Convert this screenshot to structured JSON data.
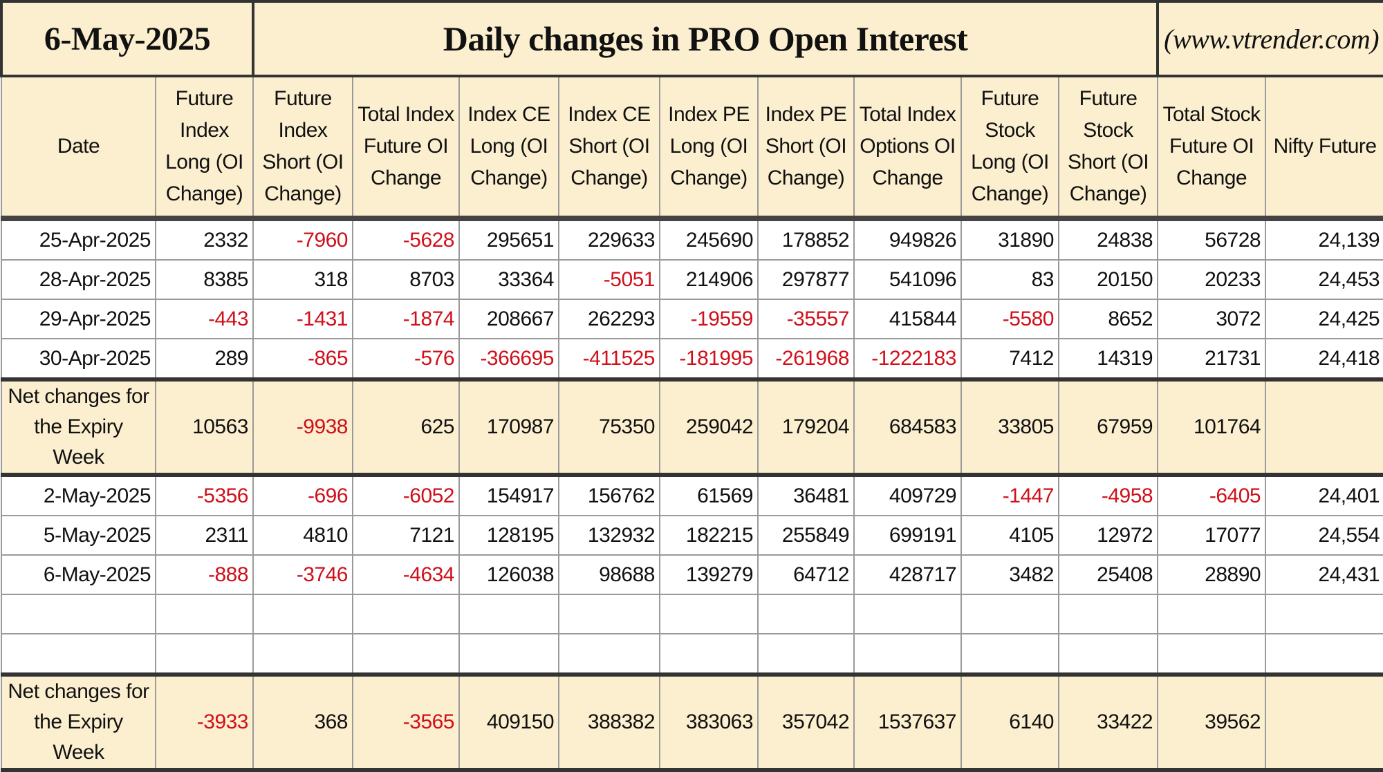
{
  "header": {
    "date": "6-May-2025",
    "title": "Daily changes in PRO Open Interest",
    "website": "(www.vtrender.com)"
  },
  "table": {
    "columns": [
      "Date",
      "Future Index Long (OI Change)",
      "Future Index Short (OI Change)",
      "Total Index Future OI Change",
      "Index CE Long (OI Change)",
      "Index CE Short (OI Change)",
      "Index PE Long (OI Change)",
      "Index PE Short (OI Change)",
      "Total Index Options OI Change",
      "Future Stock Long (OI Change)",
      "Future Stock Short (OI Change)",
      "Total Stock Future OI Change",
      "Nifty Future"
    ],
    "sections": [
      {
        "rows": [
          [
            "25-Apr-2025",
            "2332",
            "-7960",
            "-5628",
            "295651",
            "229633",
            "245690",
            "178852",
            "949826",
            "31890",
            "24838",
            "56728",
            "24,139"
          ],
          [
            "28-Apr-2025",
            "8385",
            "318",
            "8703",
            "33364",
            "-5051",
            "214906",
            "297877",
            "541096",
            "83",
            "20150",
            "20233",
            "24,453"
          ],
          [
            "29-Apr-2025",
            "-443",
            "-1431",
            "-1874",
            "208667",
            "262293",
            "-19559",
            "-35557",
            "415844",
            "-5580",
            "8652",
            "3072",
            "24,425"
          ],
          [
            "30-Apr-2025",
            "289",
            "-865",
            "-576",
            "-366695",
            "-411525",
            "-181995",
            "-261968",
            "-1222183",
            "7412",
            "14319",
            "21731",
            "24,418"
          ]
        ],
        "net": [
          "Net changes for the Expiry Week",
          "10563",
          "-9938",
          "625",
          "170987",
          "75350",
          "259042",
          "179204",
          "684583",
          "33805",
          "67959",
          "101764"
        ]
      },
      {
        "rows": [
          [
            "2-May-2025",
            "-5356",
            "-696",
            "-6052",
            "154917",
            "156762",
            "61569",
            "36481",
            "409729",
            "-1447",
            "-4958",
            "-6405",
            "24,401"
          ],
          [
            "5-May-2025",
            "2311",
            "4810",
            "7121",
            "128195",
            "132932",
            "182215",
            "255849",
            "699191",
            "4105",
            "12972",
            "17077",
            "24,554"
          ],
          [
            "6-May-2025",
            "-888",
            "-3746",
            "-4634",
            "126038",
            "98688",
            "139279",
            "64712",
            "428717",
            "3482",
            "25408",
            "28890",
            "24,431"
          ]
        ],
        "net": [
          "Net changes for the Expiry Week",
          "-3933",
          "368",
          "-3565",
          "409150",
          "388382",
          "383063",
          "357042",
          "1537637",
          "6140",
          "33422",
          "39562"
        ]
      }
    ]
  }
}
